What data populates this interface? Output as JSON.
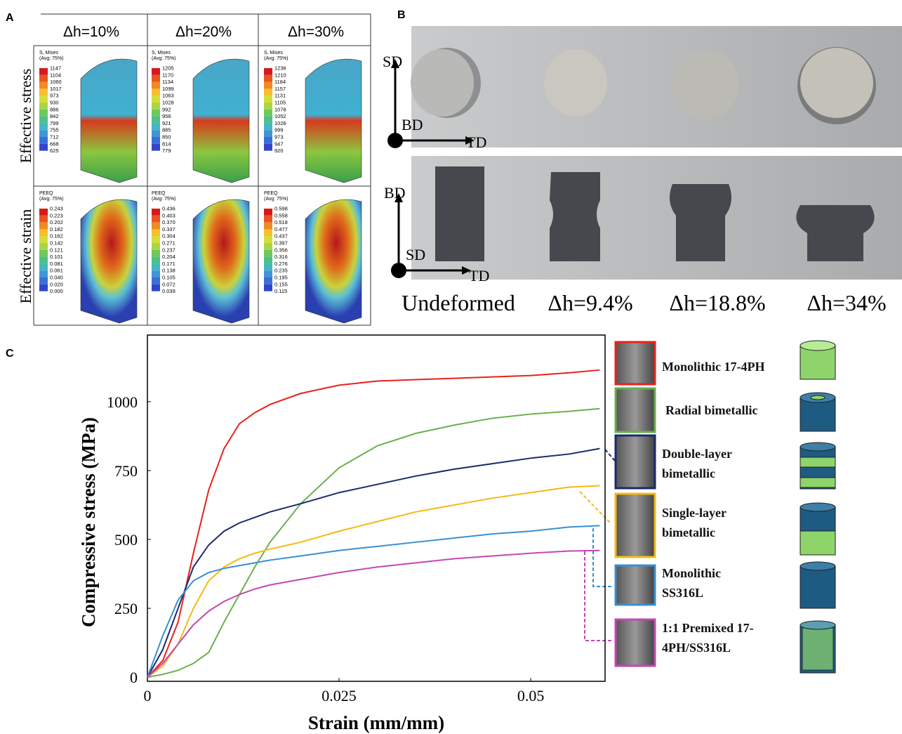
{
  "panel_a": {
    "label": "A",
    "columns": [
      "Δh=10%",
      "Δh=20%",
      "Δh=30%"
    ],
    "rows": [
      "Effective stress",
      "Effective strain"
    ],
    "legends": [
      [
        {
          "title": [
            "S, Mises",
            "(Avg: 75%)"
          ],
          "values": [
            "1147",
            "1104",
            "1060",
            "1017",
            "973",
            "930",
            "886",
            "842",
            "799",
            "755",
            "712",
            "668",
            "625"
          ]
        },
        {
          "title": [
            "S, Mises",
            "(Avg: 75%)"
          ],
          "values": [
            "1205",
            "1170",
            "1134",
            "1099",
            "1063",
            "1028",
            "992",
            "956",
            "921",
            "885",
            "850",
            "814",
            "779"
          ]
        },
        {
          "title": [
            "S, Mises",
            "(Avg: 75%)"
          ],
          "values": [
            "1236",
            "1210",
            "1184",
            "1157",
            "1131",
            "1105",
            "1078",
            "1052",
            "1026",
            "999",
            "973",
            "947",
            "920"
          ]
        }
      ],
      [
        {
          "title": [
            "PEEQ",
            "(Avg: 75%)"
          ],
          "values": [
            "0.243",
            "0.223",
            "0.202",
            "0.182",
            "0.162",
            "0.142",
            "0.121",
            "0.101",
            "0.081",
            "0.061",
            "0.040",
            "0.020",
            "0.000"
          ]
        },
        {
          "title": [
            "PEEQ",
            "(Avg: 75%)"
          ],
          "values": [
            "0.436",
            "0.403",
            "0.370",
            "0.337",
            "0.304",
            "0.271",
            "0.237",
            "0.204",
            "0.171",
            "0.138",
            "0.105",
            "0.072",
            "0.039"
          ]
        },
        {
          "title": [
            "PEEQ",
            "(Avg: 75%)"
          ],
          "values": [
            "0.598",
            "0.558",
            "0.518",
            "0.477",
            "0.437",
            "0.397",
            "0.356",
            "0.316",
            "0.276",
            "0.235",
            "0.195",
            "0.155",
            "0.115"
          ]
        }
      ]
    ]
  },
  "panel_b": {
    "label": "B",
    "top_axes": [
      "SD",
      "BD",
      "TD"
    ],
    "bottom_axes": [
      "BD",
      "SD",
      "TD"
    ],
    "captions": [
      "Undeformed",
      "Δh=9.4%",
      "Δh=18.8%",
      "Δh=34%"
    ]
  },
  "chart_data": {
    "type": "line",
    "panel_label": "C",
    "x_label": "Strain (mm/mm)",
    "y_label": "Compressive stress (MPa)",
    "x": [
      0,
      0.002,
      0.004,
      0.006,
      0.008,
      0.01,
      0.012,
      0.014,
      0.016,
      0.02,
      0.025,
      0.03,
      0.035,
      0.04,
      0.045,
      0.05,
      0.055,
      0.059
    ],
    "xlim": [
      0,
      0.0597
    ],
    "ylim": [
      -15,
      1242
    ],
    "xticks": [
      0,
      0.025,
      0.05
    ],
    "yticks": [
      0,
      250,
      500,
      750,
      1000
    ],
    "series": [
      {
        "name": "Monolithic 17-4PH",
        "color": "#e8221b",
        "values": [
          0,
          60,
          200,
          450,
          680,
          830,
          920,
          960,
          990,
          1030,
          1060,
          1075,
          1080,
          1085,
          1090,
          1095,
          1105,
          1115
        ]
      },
      {
        "name": "Radial bimetallic",
        "color": "#6ab04c",
        "values": [
          0,
          10,
          25,
          50,
          90,
          200,
          300,
          400,
          490,
          630,
          760,
          840,
          885,
          915,
          940,
          955,
          965,
          975
        ]
      },
      {
        "name": "Double-layer bimetallic",
        "color": "#1a2a6c",
        "values": [
          0,
          100,
          250,
          400,
          480,
          530,
          560,
          580,
          600,
          630,
          670,
          700,
          730,
          755,
          775,
          795,
          810,
          830
        ]
      },
      {
        "name": "Single-layer bimetallic",
        "color": "#f5b914",
        "values": [
          0,
          40,
          120,
          250,
          350,
          400,
          430,
          450,
          465,
          490,
          530,
          565,
          600,
          625,
          650,
          670,
          690,
          695
        ]
      },
      {
        "name": "Monolithic SS316L",
        "color": "#3a8fd1",
        "values": [
          0,
          150,
          280,
          350,
          380,
          395,
          405,
          415,
          425,
          440,
          460,
          475,
          490,
          505,
          520,
          530,
          545,
          550
        ]
      },
      {
        "name": "1:1 Premixed 17-4PH/SS316L",
        "color": "#c447b4",
        "values": [
          0,
          50,
          120,
          190,
          240,
          275,
          300,
          320,
          335,
          355,
          380,
          400,
          415,
          430,
          440,
          450,
          458,
          460
        ]
      }
    ]
  }
}
